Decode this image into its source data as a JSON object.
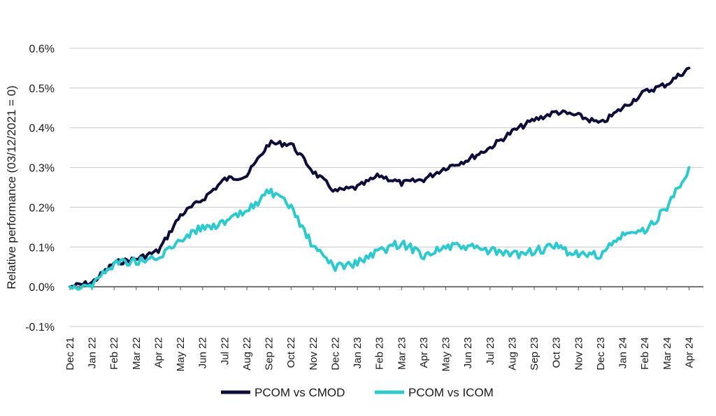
{
  "chart_data": {
    "type": "line",
    "title": "",
    "xlabel": "",
    "ylabel": "Relative performance (03/12/2021 = 0)",
    "ylim": [
      -0.1,
      0.6
    ],
    "y_ticks": [
      "-0.1%",
      "0.0%",
      "0.1%",
      "0.2%",
      "0.3%",
      "0.4%",
      "0.5%",
      "0.6%"
    ],
    "grid": "horizontal",
    "legend_position": "bottom",
    "categories": [
      "Dec 21",
      "Jan 22",
      "Feb 22",
      "Mar 22",
      "Apr 22",
      "May 22",
      "Jun 22",
      "Jul 22",
      "Aug 22",
      "Sep 22",
      "Oct 22",
      "Nov 22",
      "Dec 22",
      "Jan 23",
      "Feb 23",
      "Mar 23",
      "Apr 23",
      "May 23",
      "Jun 23",
      "Jul 23",
      "Aug 23",
      "Sep 23",
      "Oct 23",
      "Nov 23",
      "Dec 23",
      "Jan 24",
      "Feb 24",
      "Mar 24",
      "Apr 24"
    ],
    "series": [
      {
        "name": "PCOM vs CMOD",
        "color": "#0d0d3a",
        "values": [
          0.0,
          0.01,
          0.06,
          0.07,
          0.09,
          0.18,
          0.22,
          0.27,
          0.28,
          0.36,
          0.36,
          0.29,
          0.24,
          0.25,
          0.28,
          0.26,
          0.27,
          0.3,
          0.32,
          0.35,
          0.39,
          0.42,
          0.44,
          0.43,
          0.41,
          0.45,
          0.49,
          0.51,
          0.55
        ]
      },
      {
        "name": "PCOM vs ICOM",
        "color": "#2ec8cf",
        "values": [
          0.0,
          0.005,
          0.06,
          0.065,
          0.07,
          0.12,
          0.15,
          0.16,
          0.19,
          0.24,
          0.2,
          0.1,
          0.05,
          0.06,
          0.09,
          0.11,
          0.08,
          0.1,
          0.1,
          0.09,
          0.08,
          0.09,
          0.1,
          0.08,
          0.08,
          0.13,
          0.14,
          0.2,
          0.3
        ]
      }
    ]
  }
}
